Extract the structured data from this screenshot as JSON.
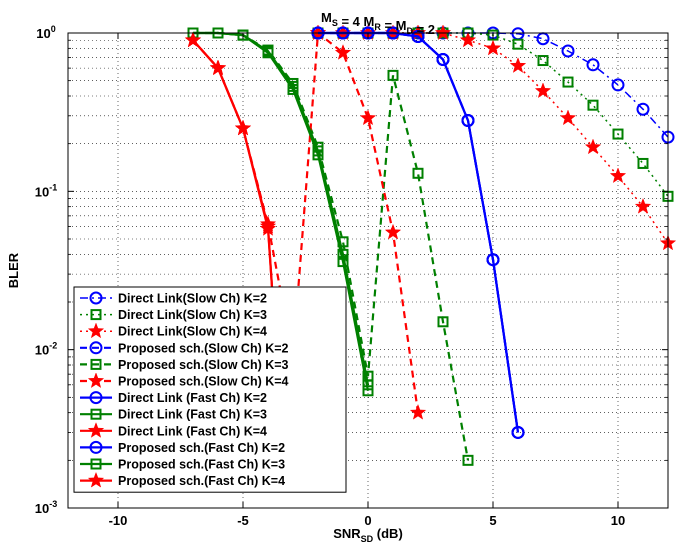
{
  "chart_data": {
    "type": "line",
    "title": {
      "main": "M",
      "parts": [
        {
          "t": "M",
          "sub": "S"
        },
        {
          "t": " = 4 M",
          "sub": "R"
        },
        {
          "t": " = M",
          "sub": "D"
        },
        {
          "t": " = 2",
          "sub": ""
        }
      ]
    },
    "xlabel": {
      "main": "SNR",
      "sub": "SD",
      "rest": " (dB)"
    },
    "ylabel": "BLER",
    "xlim": [
      -12,
      12
    ],
    "ylim": [
      0.001,
      1
    ],
    "yscale": "log",
    "grid": true,
    "legend_position": "bottom-left",
    "x_ticks": [
      -10,
      -5,
      0,
      5,
      10
    ],
    "x_tick_labels": [
      "-10",
      "-5",
      "0",
      "5",
      "10"
    ],
    "y_ticks": [
      0.001,
      0.01,
      0.1,
      1
    ],
    "y_tick_labels": [
      {
        "base": "10",
        "exp": "-3"
      },
      {
        "base": "10",
        "exp": "-2"
      },
      {
        "base": "10",
        "exp": "-1"
      },
      {
        "base": "10",
        "exp": "0"
      }
    ],
    "colors": {
      "blue": "#0000ff",
      "green": "#008000",
      "red": "#ff0000"
    },
    "series": [
      {
        "name": "Direct Link(Slow Ch) K=2",
        "color": "#0000ff",
        "marker": "circle",
        "dash": "dashdot",
        "width": 1.5,
        "x": [
          -2,
          -1,
          0,
          1,
          2,
          3,
          4,
          5,
          6,
          7,
          8,
          9,
          10,
          11,
          12
        ],
        "y": [
          1,
          1,
          1,
          1,
          1,
          1,
          1,
          1,
          0.99,
          0.92,
          0.77,
          0.63,
          0.47,
          0.33,
          0.22
        ]
      },
      {
        "name": "Direct Link(Slow Ch) K=3",
        "color": "#008000",
        "marker": "square",
        "dash": "dot",
        "width": 1.5,
        "x": [
          -2,
          -1,
          0,
          1,
          2,
          3,
          4,
          5,
          6,
          7,
          8,
          9,
          10,
          11,
          12
        ],
        "y": [
          1,
          1,
          1,
          1,
          1,
          1,
          1,
          0.97,
          0.85,
          0.67,
          0.49,
          0.35,
          0.23,
          0.15,
          0.093
        ]
      },
      {
        "name": "Direct Link(Slow Ch) K=4",
        "color": "#ff0000",
        "marker": "star",
        "dash": "dot",
        "width": 1.5,
        "x": [
          -2,
          -1,
          0,
          1,
          2,
          3,
          4,
          5,
          6,
          7,
          8,
          9,
          10,
          11,
          12
        ],
        "y": [
          1,
          1,
          1,
          1,
          1,
          1,
          0.9,
          0.8,
          0.62,
          0.43,
          0.29,
          0.19,
          0.125,
          0.08,
          0.047
        ]
      },
      {
        "name": "Proposed sch.(Slow Ch) K=2",
        "color": "#0000ff",
        "marker": "circle",
        "dash": "dashed",
        "width": 2.2,
        "x": [
          -2,
          -1,
          0,
          1,
          2,
          3,
          4,
          5,
          6
        ],
        "y": [
          1,
          1,
          1,
          1,
          0.95,
          0.68,
          0.28,
          0.037,
          0.003
        ]
      },
      {
        "name": "Proposed sch.(Slow Ch) K=3",
        "color": "#008000",
        "marker": "square",
        "dash": "dashed",
        "width": 2.2,
        "x": [
          -7,
          -6,
          -5,
          -4,
          -3,
          -2,
          -1,
          0,
          1,
          2,
          3,
          4
        ],
        "y": [
          1,
          1,
          0.97,
          0.78,
          0.48,
          0.19,
          0.048,
          0.0068,
          0.54,
          0.13,
          0.015,
          0.002
        ]
      },
      {
        "name": "Proposed sch.(Slow Ch) K=4",
        "color": "#ff0000",
        "marker": "star",
        "dash": "dashed",
        "width": 2.2,
        "x": [
          -7,
          -6,
          -5,
          -4,
          -3,
          -2,
          -1,
          0,
          1,
          2
        ],
        "y": [
          0.9,
          0.6,
          0.25,
          0.062,
          0.009,
          1,
          0.75,
          0.29,
          0.055,
          0.004
        ]
      },
      {
        "name": "Direct Link (Fast Ch) K=2",
        "color": "#0000ff",
        "marker": "circle",
        "dash": "solid",
        "width": 2.2,
        "x": [
          -2,
          -1,
          0,
          1,
          2,
          3,
          4,
          5,
          6
        ],
        "y": [
          1,
          1,
          1,
          1,
          0.95,
          0.68,
          0.28,
          0.037,
          0.003
        ]
      },
      {
        "name": "Direct Link (Fast Ch) K=3",
        "color": "#008000",
        "marker": "square",
        "dash": "solid",
        "width": 2.2,
        "x": [
          -7,
          -6,
          -5,
          -4,
          -3,
          -2,
          -1,
          0
        ],
        "y": [
          1,
          1,
          0.97,
          0.75,
          0.44,
          0.17,
          0.036,
          0.0055
        ]
      },
      {
        "name": "Direct Link (Fast Ch) K=4",
        "color": "#ff0000",
        "marker": "star",
        "dash": "solid",
        "width": 2.2,
        "x": [
          -7,
          -6,
          -5,
          -4,
          -3.8
        ],
        "y": [
          0.9,
          0.6,
          0.25,
          0.058,
          0.02
        ]
      },
      {
        "name": "Proposed sch.(Fast Ch) K=2",
        "color": "#0000ff",
        "marker": "circle",
        "dash": "solid",
        "width": 2.2,
        "x": [
          -2,
          -1,
          0,
          1,
          2,
          3,
          4,
          5,
          6
        ],
        "y": [
          1,
          1,
          1,
          1,
          0.95,
          0.68,
          0.28,
          0.037,
          0.003
        ]
      },
      {
        "name": "Proposed sch.(Fast Ch) K=3",
        "color": "#008000",
        "marker": "square",
        "dash": "solid",
        "width": 2.2,
        "x": [
          -7,
          -6,
          -5,
          -4,
          -3,
          -2,
          -1,
          0
        ],
        "y": [
          1,
          1,
          0.97,
          0.77,
          0.46,
          0.18,
          0.04,
          0.006
        ]
      },
      {
        "name": "Proposed sch.(Fast Ch) K=4",
        "color": "#ff0000",
        "marker": "star",
        "dash": "solid",
        "width": 2.2,
        "x": [
          -7,
          -6,
          -5,
          -4,
          -3.8
        ],
        "y": [
          0.9,
          0.6,
          0.25,
          0.06,
          0.02
        ]
      }
    ]
  }
}
